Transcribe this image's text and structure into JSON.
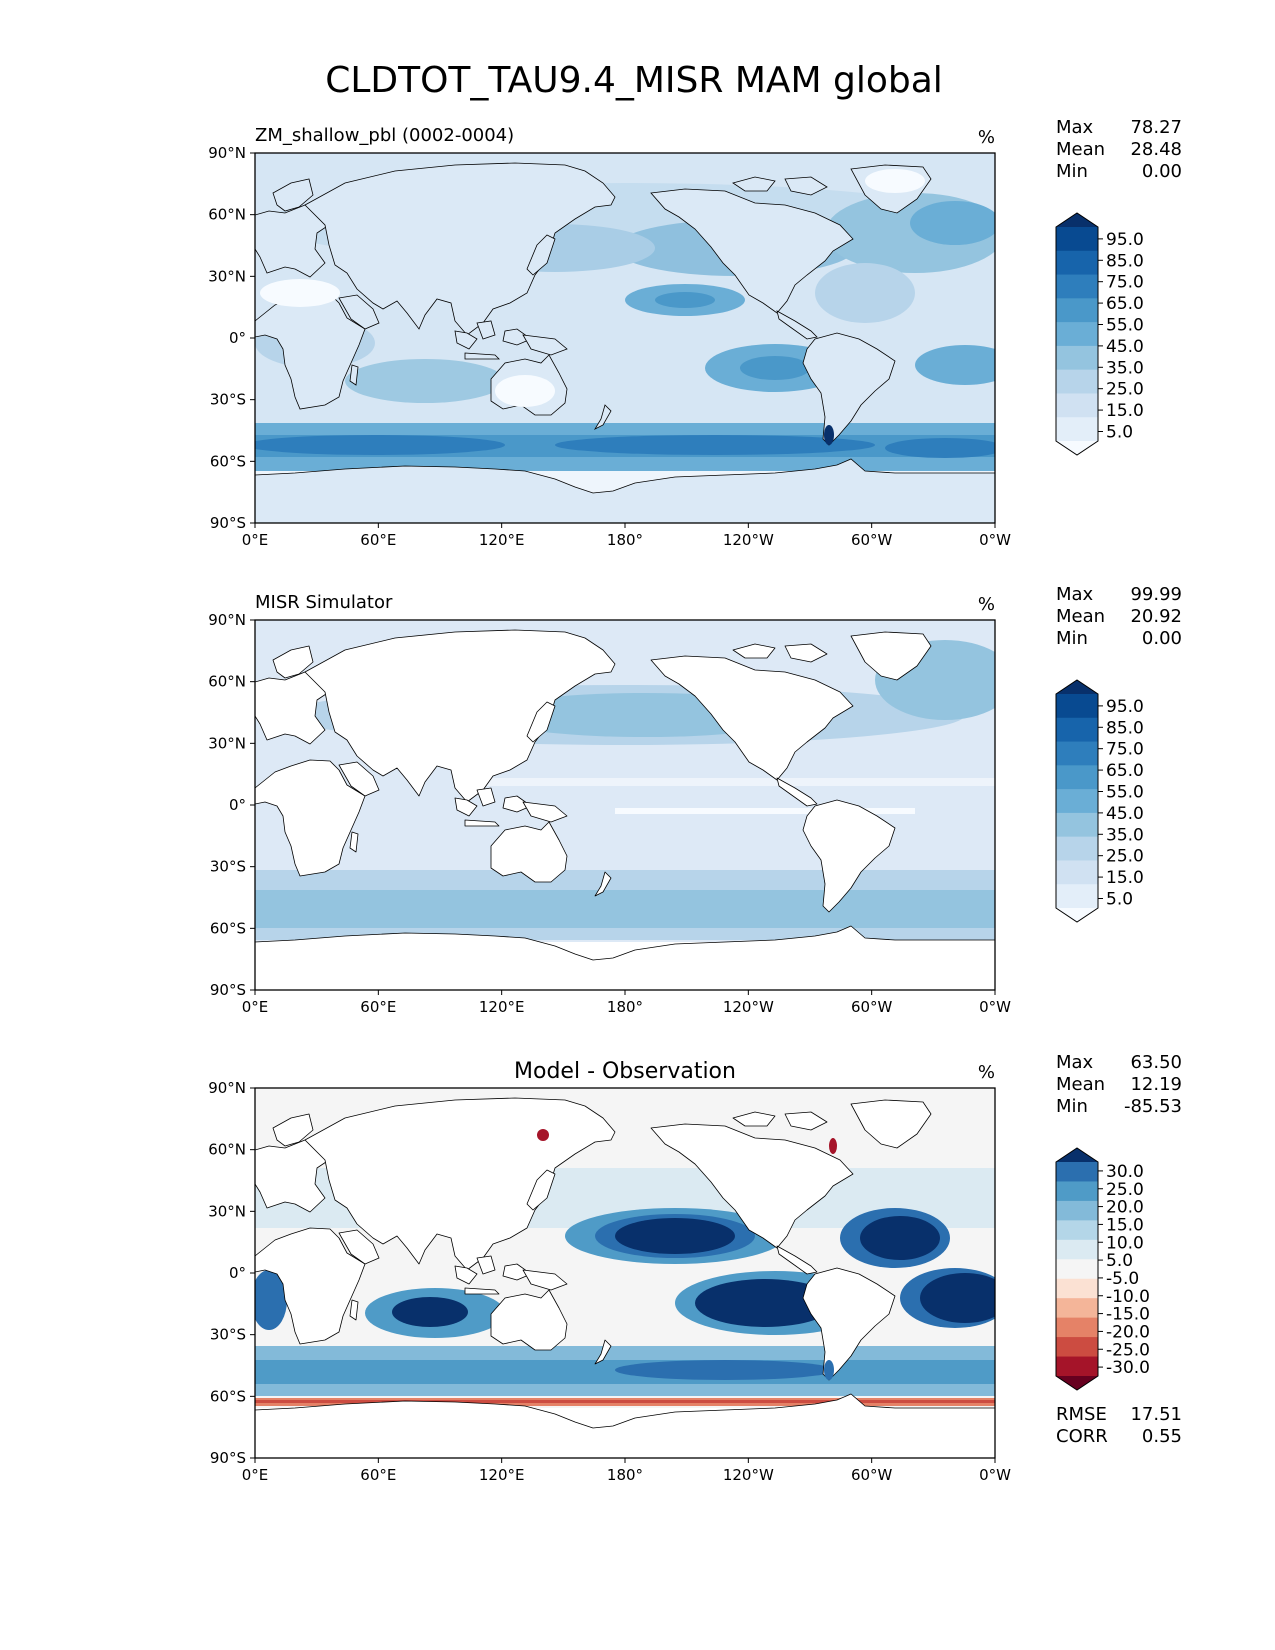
{
  "figure": {
    "title": "CLDTOT_TAU9.4_MISR MAM global"
  },
  "colors": {
    "blues": [
      "#f7fbff",
      "#e3eef9",
      "#d0e1f2",
      "#b7d4ea",
      "#94c4df",
      "#6aaed6",
      "#4a98c9",
      "#2e7ebc",
      "#1764ab",
      "#084a91",
      "#08306b"
    ],
    "rdbu_neg": [
      "#fbe1d3",
      "#f4b599",
      "#e58267",
      "#cc4c41",
      "#a51429",
      "#67001f"
    ],
    "rdbu_neutral": "#f5f5f5",
    "rdbu_pos": [
      "#dbeaf2",
      "#b4d6e8",
      "#83bad9",
      "#4f9bc7",
      "#2b6faf",
      "#08306b"
    ]
  },
  "panels": [
    {
      "id": "test",
      "left_title": "ZM_shallow_pbl (0002-0004)",
      "center_title": "",
      "units": "%",
      "stats": [
        {
          "label": "Max",
          "value": "78.27"
        },
        {
          "label": "Mean",
          "value": "28.48"
        },
        {
          "label": "Min",
          "value": "0.00"
        }
      ],
      "colorbar_ticks": [
        "95.0",
        "85.0",
        "75.0",
        "65.0",
        "55.0",
        "45.0",
        "35.0",
        "25.0",
        "15.0",
        "5.0"
      ],
      "colorbar_type": "blues"
    },
    {
      "id": "reference",
      "left_title": "MISR Simulator",
      "center_title": "",
      "units": "%",
      "stats": [
        {
          "label": "Max",
          "value": "99.99"
        },
        {
          "label": "Mean",
          "value": "20.92"
        },
        {
          "label": "Min",
          "value": "0.00"
        }
      ],
      "colorbar_ticks": [
        "95.0",
        "85.0",
        "75.0",
        "65.0",
        "55.0",
        "45.0",
        "35.0",
        "25.0",
        "15.0",
        "5.0"
      ],
      "colorbar_type": "blues"
    },
    {
      "id": "diff",
      "left_title": "",
      "center_title": "Model - Observation",
      "units": "%",
      "stats": [
        {
          "label": "Max",
          "value": "63.50"
        },
        {
          "label": "Mean",
          "value": "12.19"
        },
        {
          "label": "Min",
          "value": "-85.53"
        }
      ],
      "colorbar_ticks": [
        "30.0",
        "25.0",
        "20.0",
        "15.0",
        "10.0",
        "5.0",
        "-5.0",
        "-10.0",
        "-15.0",
        "-20.0",
        "-25.0",
        "-30.0"
      ],
      "colorbar_type": "rdbu",
      "extra_stats": [
        {
          "label": "RMSE",
          "value": "17.51"
        },
        {
          "label": "CORR",
          "value": "0.55"
        }
      ]
    }
  ],
  "axes": {
    "lon_ticks": [
      "0°E",
      "60°E",
      "120°E",
      "180°",
      "120°W",
      "60°W",
      "0°W"
    ],
    "lat_ticks": [
      "90°N",
      "60°N",
      "30°N",
      "0°",
      "30°S",
      "60°S",
      "90°S"
    ]
  }
}
